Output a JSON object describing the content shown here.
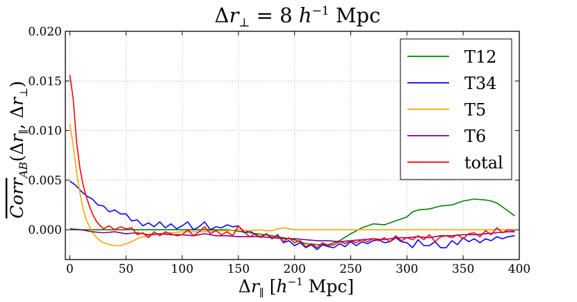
{
  "chart_data": {
    "type": "line",
    "title": "Δr⊥ = 8 h⁻¹ Mpc",
    "xlabel": "Δr∥ [h⁻¹ Mpc]",
    "ylabel": "Corr_AB(Δr∥, Δr⊥)",
    "xlim": [
      -4,
      400
    ],
    "ylim": [
      -0.003,
      0.02
    ],
    "xticks": [
      0,
      50,
      100,
      150,
      200,
      250,
      300,
      350,
      400
    ],
    "yticks": [
      0.0,
      0.005,
      0.01,
      0.015,
      0.02
    ],
    "xtick_labels": [
      "0",
      "50",
      "100",
      "150",
      "200",
      "250",
      "300",
      "350",
      "400"
    ],
    "ytick_labels": [
      "0.000",
      "0.005",
      "0.010",
      "0.015",
      "0.020"
    ],
    "grid": true,
    "legend_position": "top-right",
    "series": [
      {
        "name": "T12",
        "color": "#008000",
        "x": [
          0,
          20,
          40,
          60,
          80,
          100,
          120,
          140,
          160,
          180,
          200,
          210,
          220,
          230,
          240,
          250,
          260,
          270,
          280,
          290,
          300,
          305,
          310,
          320,
          330,
          340,
          345,
          350,
          360,
          370,
          375,
          380,
          385,
          390,
          396
        ],
        "y": [
          0.0,
          0.0,
          0.0,
          0.0,
          0.0,
          0.0,
          0.0,
          0.0,
          -0.0003,
          -0.0006,
          -0.001,
          -0.0014,
          -0.0015,
          -0.0015,
          -0.0011,
          -0.0004,
          0.0002,
          0.0006,
          0.0005,
          0.0009,
          0.0013,
          0.0018,
          0.002,
          0.0021,
          0.0024,
          0.0025,
          0.0027,
          0.0029,
          0.0031,
          0.003,
          0.0029,
          0.0027,
          0.0023,
          0.0019,
          0.0014
        ]
      },
      {
        "name": "T34",
        "color": "#0000ff",
        "x": [
          0,
          5,
          10,
          15,
          20,
          25,
          30,
          35,
          40,
          45,
          50,
          55,
          60,
          65,
          70,
          75,
          80,
          85,
          90,
          95,
          100,
          105,
          110,
          115,
          120,
          125,
          130,
          135,
          140,
          145,
          150,
          155,
          160,
          165,
          170,
          175,
          180,
          185,
          190,
          195,
          200,
          205,
          210,
          215,
          220,
          225,
          230,
          235,
          240,
          245,
          250,
          255,
          260,
          265,
          270,
          275,
          280,
          285,
          290,
          295,
          300,
          305,
          310,
          315,
          320,
          325,
          330,
          335,
          340,
          345,
          350,
          355,
          360,
          365,
          370,
          375,
          380,
          385,
          390,
          396
        ],
        "y": [
          0.0049,
          0.0045,
          0.0039,
          0.0034,
          0.0031,
          0.0025,
          0.0024,
          0.0018,
          0.002,
          0.0016,
          0.0016,
          0.0009,
          0.001,
          0.0004,
          0.0007,
          0.0003,
          0.0008,
          0.0002,
          0.0006,
          0.0001,
          0.0004,
          0.0008,
          0.0,
          0.0003,
          0.0008,
          0.0,
          0.0003,
          0.0002,
          0.0005,
          0.0003,
          0.0004,
          -0.0003,
          -0.0001,
          -0.0005,
          -0.0007,
          -0.0004,
          -0.0009,
          -0.0005,
          -0.0013,
          -0.0011,
          -0.0016,
          -0.0013,
          -0.0018,
          -0.0015,
          -0.002,
          -0.0015,
          -0.0017,
          -0.0018,
          -0.0014,
          -0.0017,
          -0.0012,
          -0.0016,
          -0.0012,
          -0.0014,
          -0.0011,
          -0.001,
          -0.0013,
          -0.0012,
          -0.0008,
          -0.0012,
          -0.0013,
          -0.0018,
          -0.001,
          -0.0016,
          -0.0016,
          -0.0012,
          -0.0018,
          -0.0018,
          -0.0011,
          -0.0015,
          -0.0008,
          -0.0012,
          -0.0009,
          -0.0013,
          -0.0009,
          -0.0011,
          -0.0007,
          -0.0009,
          -0.0007,
          -0.0006
        ]
      },
      {
        "name": "T5",
        "color": "#ffa500",
        "x": [
          0,
          3,
          6,
          9,
          12,
          15,
          18,
          21,
          24,
          27,
          30,
          35,
          40,
          45,
          50,
          55,
          60,
          65,
          70,
          80,
          90,
          100,
          110,
          120,
          130,
          140,
          150,
          160,
          170,
          175,
          180,
          185,
          190,
          195,
          200,
          210,
          220,
          250,
          300,
          350,
          396
        ],
        "y": [
          0.0107,
          0.0085,
          0.0058,
          0.0037,
          0.002,
          0.0009,
          0.0002,
          -0.0004,
          -0.0008,
          -0.0011,
          -0.0013,
          -0.0015,
          -0.0016,
          -0.0016,
          -0.0014,
          -0.0012,
          -0.0009,
          -0.0007,
          -0.0006,
          -0.0004,
          -0.0003,
          -0.0002,
          -0.0002,
          -0.0002,
          -0.0001,
          -0.0001,
          0.0,
          -0.0001,
          0.0,
          -0.0001,
          -0.0001,
          0.0001,
          0.0002,
          0.0001,
          0.0,
          0.0,
          0.0,
          0.0,
          0.0,
          0.0,
          0.0
        ]
      },
      {
        "name": "T6",
        "color": "#800080",
        "x": [
          0,
          10,
          20,
          30,
          40,
          50,
          60,
          70,
          80,
          90,
          100,
          110,
          120,
          130,
          140,
          150,
          160,
          170,
          180,
          190,
          200,
          210,
          220,
          230,
          240,
          250,
          260,
          270,
          280,
          290,
          300,
          310,
          320,
          330,
          340,
          350,
          360,
          370,
          380,
          390,
          396
        ],
        "y": [
          0.0001,
          0.0,
          -0.0002,
          -0.0003,
          -0.0002,
          -0.0004,
          -0.0003,
          -0.0005,
          -0.0004,
          -0.0005,
          -0.0005,
          -0.0006,
          -0.0004,
          -0.0006,
          -0.0006,
          -0.0007,
          -0.0007,
          -0.0007,
          -0.0008,
          -0.0009,
          -0.0009,
          -0.001,
          -0.0011,
          -0.0011,
          -0.0012,
          -0.0011,
          -0.001,
          -0.0009,
          -0.001,
          -0.0008,
          -0.0008,
          -0.0007,
          -0.0008,
          -0.0006,
          -0.0006,
          -0.0005,
          -0.0005,
          -0.0004,
          -0.0003,
          -0.0002,
          -0.0002
        ]
      },
      {
        "name": "total",
        "color": "#ff0000",
        "x": [
          0,
          3,
          6,
          9,
          12,
          15,
          18,
          21,
          24,
          27,
          30,
          35,
          40,
          45,
          50,
          55,
          60,
          65,
          70,
          75,
          80,
          85,
          90,
          95,
          100,
          105,
          110,
          115,
          120,
          125,
          130,
          135,
          140,
          145,
          150,
          155,
          160,
          165,
          170,
          175,
          180,
          185,
          190,
          195,
          200,
          205,
          210,
          215,
          220,
          225,
          230,
          235,
          240,
          245,
          250,
          255,
          260,
          265,
          270,
          275,
          280,
          285,
          290,
          295,
          300,
          305,
          310,
          315,
          320,
          325,
          330,
          335,
          340,
          345,
          350,
          355,
          360,
          365,
          370,
          375,
          380,
          385,
          390,
          396
        ],
        "y": [
          0.0156,
          0.0132,
          0.0088,
          0.0062,
          0.0044,
          0.0032,
          0.0022,
          0.0014,
          0.0008,
          0.0004,
          0.0001,
          0.0004,
          0.0,
          0.0003,
          0.0001,
          0.0002,
          -0.0005,
          -0.0003,
          -0.0008,
          -0.0002,
          -0.0006,
          -0.0002,
          -0.0004,
          -0.0006,
          -0.0005,
          0.0,
          -0.0006,
          -0.0002,
          0.0003,
          -0.0004,
          -0.0001,
          -0.0005,
          -0.0002,
          -0.0006,
          0.0004,
          -0.0002,
          -0.0007,
          -0.0004,
          -0.0008,
          -0.0004,
          -0.0008,
          -0.0006,
          -0.0012,
          -0.0008,
          -0.0013,
          -0.0011,
          -0.0017,
          -0.0014,
          -0.0018,
          -0.0013,
          -0.0016,
          -0.0015,
          -0.0012,
          -0.0014,
          -0.0011,
          -0.0013,
          -0.001,
          -0.0012,
          -0.0009,
          -0.0011,
          -0.0008,
          -0.0012,
          -0.0006,
          -0.0011,
          -0.0008,
          -0.001,
          -0.0006,
          -0.001,
          -0.0005,
          -0.0012,
          -0.0007,
          -0.0006,
          -0.0008,
          -0.0005,
          -0.0009,
          -0.0004,
          -0.0003,
          -0.0007,
          -0.0001,
          -0.0005,
          0.0002,
          -0.0003,
          0.0,
          -0.0001
        ]
      }
    ]
  }
}
